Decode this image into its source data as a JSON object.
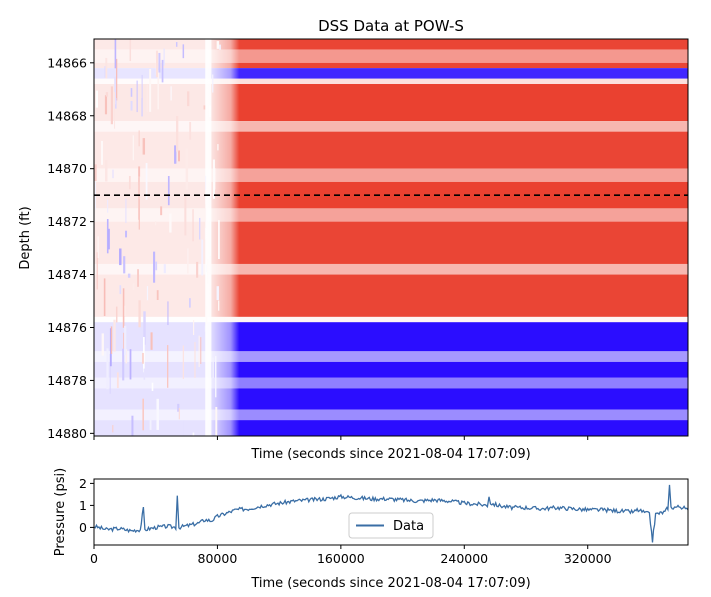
{
  "chart_data": [
    {
      "type": "heatmap",
      "title": "DSS Data at POW-S",
      "xlabel": "Time (seconds since 2021-08-04 17:07:09)",
      "ylabel": "Depth (ft)",
      "xlim": [
        0,
        385000
      ],
      "ylim": [
        14880.1,
        14865.1
      ],
      "y_ticks": [
        14866,
        14868,
        14870,
        14872,
        14874,
        14876,
        14878,
        14880
      ],
      "x_tick_labels_shown": false,
      "colormap": [
        "#2000ff",
        "#ffffff",
        "#e8301e"
      ],
      "reference_line": {
        "depth": 14871,
        "style": "dashed",
        "color": "#000000"
      },
      "bands": [
        {
          "depth": [
            14865.1,
            14865.5
          ],
          "value": 0.9
        },
        {
          "depth": [
            14865.5,
            14866.0
          ],
          "value": 0.5
        },
        {
          "depth": [
            14866.0,
            14866.2
          ],
          "value": 0.9
        },
        {
          "depth": [
            14866.2,
            14866.6
          ],
          "value": -0.85
        },
        {
          "depth": [
            14866.6,
            14866.8
          ],
          "value": 0.15
        },
        {
          "depth": [
            14866.8,
            14868.2
          ],
          "value": 0.92
        },
        {
          "depth": [
            14868.2,
            14868.6
          ],
          "value": 0.35
        },
        {
          "depth": [
            14868.6,
            14870.0
          ],
          "value": 0.9
        },
        {
          "depth": [
            14870.0,
            14870.5
          ],
          "value": 0.45
        },
        {
          "depth": [
            14870.5,
            14871.5
          ],
          "value": 0.92
        },
        {
          "depth": [
            14871.5,
            14872.0
          ],
          "value": 0.45
        },
        {
          "depth": [
            14872.0,
            14873.6
          ],
          "value": 0.9
        },
        {
          "depth": [
            14873.6,
            14874.0
          ],
          "value": 0.35
        },
        {
          "depth": [
            14874.0,
            14875.6
          ],
          "value": 0.9
        },
        {
          "depth": [
            14875.6,
            14875.8
          ],
          "value": 0.05
        },
        {
          "depth": [
            14875.8,
            14876.9
          ],
          "value": -0.95
        },
        {
          "depth": [
            14876.9,
            14877.3
          ],
          "value": -0.4
        },
        {
          "depth": [
            14877.3,
            14877.9
          ],
          "value": -0.95
        },
        {
          "depth": [
            14877.9,
            14878.3
          ],
          "value": -0.5
        },
        {
          "depth": [
            14878.3,
            14879.1
          ],
          "value": -0.95
        },
        {
          "depth": [
            14879.1,
            14879.5
          ],
          "value": -0.45
        },
        {
          "depth": [
            14879.5,
            14880.1
          ],
          "value": -0.95
        }
      ],
      "onset_time": 76000
    },
    {
      "type": "line",
      "xlabel": "Time (seconds since 2021-08-04 17:07:09)",
      "ylabel": "Pressure (psi)",
      "xlim": [
        0,
        385000
      ],
      "ylim": [
        -0.8,
        2.2
      ],
      "x_ticks": [
        0,
        80000,
        160000,
        240000,
        320000
      ],
      "y_ticks": [
        0,
        1,
        2
      ],
      "legend": "center",
      "series": [
        {
          "name": "Data",
          "color": "#3a6ea5",
          "points": [
            [
              0,
              0.05
            ],
            [
              8000,
              -0.1
            ],
            [
              16000,
              -0.05
            ],
            [
              24000,
              -0.15
            ],
            [
              30000,
              -0.1
            ],
            [
              32000,
              0.85
            ],
            [
              33000,
              -0.1
            ],
            [
              40000,
              0.0
            ],
            [
              48000,
              0.05
            ],
            [
              53000,
              0.0
            ],
            [
              54000,
              1.5
            ],
            [
              55000,
              0.0
            ],
            [
              62000,
              0.1
            ],
            [
              68000,
              0.2
            ],
            [
              72000,
              0.35
            ],
            [
              76000,
              0.3
            ],
            [
              80000,
              0.5
            ],
            [
              86000,
              0.65
            ],
            [
              92000,
              0.8
            ],
            [
              100000,
              0.85
            ],
            [
              110000,
              1.0
            ],
            [
              120000,
              1.1
            ],
            [
              130000,
              1.2
            ],
            [
              140000,
              1.25
            ],
            [
              150000,
              1.3
            ],
            [
              160000,
              1.4
            ],
            [
              170000,
              1.35
            ],
            [
              180000,
              1.3
            ],
            [
              190000,
              1.3
            ],
            [
              200000,
              1.25
            ],
            [
              210000,
              1.2
            ],
            [
              220000,
              1.25
            ],
            [
              230000,
              1.2
            ],
            [
              240000,
              1.1
            ],
            [
              250000,
              1.05
            ],
            [
              255000,
              1.0
            ],
            [
              256000,
              1.45
            ],
            [
              257000,
              1.1
            ],
            [
              262000,
              1.0
            ],
            [
              270000,
              0.9
            ],
            [
              280000,
              0.9
            ],
            [
              290000,
              0.85
            ],
            [
              300000,
              0.9
            ],
            [
              310000,
              0.85
            ],
            [
              320000,
              0.8
            ],
            [
              330000,
              0.8
            ],
            [
              340000,
              0.75
            ],
            [
              350000,
              0.7
            ],
            [
              352000,
              0.8
            ],
            [
              360000,
              0.6
            ],
            [
              362000,
              -0.6
            ],
            [
              364000,
              0.6
            ],
            [
              370000,
              0.7
            ],
            [
              372000,
              0.9
            ],
            [
              373000,
              1.9
            ],
            [
              374000,
              0.9
            ],
            [
              380000,
              0.95
            ],
            [
              385000,
              0.8
            ]
          ]
        }
      ]
    }
  ]
}
